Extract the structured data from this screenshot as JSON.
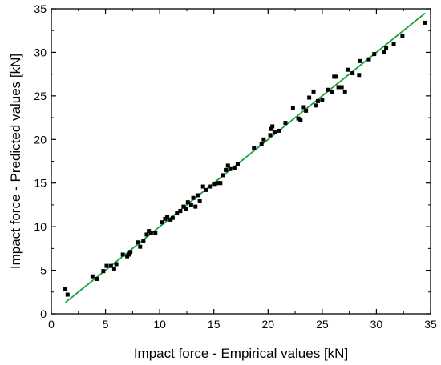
{
  "chart_data": {
    "type": "scatter",
    "xlabel": "Impact force - Empirical values [kN]",
    "ylabel": "Impact force - Predicted values [kN]",
    "xlim": [
      0,
      35
    ],
    "ylim": [
      0,
      35
    ],
    "xticks": [
      0,
      5,
      10,
      15,
      20,
      25,
      30,
      35
    ],
    "yticks": [
      0,
      5,
      10,
      15,
      20,
      25,
      30,
      35
    ],
    "minor_tick_step": 2.5,
    "grid": false,
    "series": [
      {
        "marker": "square",
        "color": "#000000",
        "points": [
          [
            1.3,
            2.8
          ],
          [
            1.5,
            2.2
          ],
          [
            3.8,
            4.3
          ],
          [
            4.2,
            4.0
          ],
          [
            4.8,
            4.9
          ],
          [
            5.1,
            5.5
          ],
          [
            5.5,
            5.5
          ],
          [
            5.8,
            5.2
          ],
          [
            6.0,
            5.7
          ],
          [
            6.6,
            6.8
          ],
          [
            7.0,
            6.6
          ],
          [
            7.2,
            6.8
          ],
          [
            7.3,
            7.1
          ],
          [
            8.0,
            8.2
          ],
          [
            8.2,
            7.7
          ],
          [
            8.5,
            8.4
          ],
          [
            8.8,
            9.1
          ],
          [
            9.0,
            9.5
          ],
          [
            9.2,
            9.3
          ],
          [
            9.6,
            9.3
          ],
          [
            10.2,
            10.5
          ],
          [
            10.5,
            10.9
          ],
          [
            10.7,
            11.1
          ],
          [
            11.0,
            10.8
          ],
          [
            11.2,
            11.0
          ],
          [
            11.6,
            11.6
          ],
          [
            11.9,
            11.8
          ],
          [
            12.2,
            12.3
          ],
          [
            12.4,
            12.0
          ],
          [
            12.6,
            12.8
          ],
          [
            12.9,
            12.5
          ],
          [
            13.1,
            13.3
          ],
          [
            13.3,
            12.3
          ],
          [
            13.5,
            13.6
          ],
          [
            13.7,
            13.0
          ],
          [
            14.0,
            14.6
          ],
          [
            14.3,
            14.2
          ],
          [
            14.7,
            14.6
          ],
          [
            15.1,
            14.9
          ],
          [
            15.4,
            15.0
          ],
          [
            15.6,
            15.0
          ],
          [
            15.8,
            15.9
          ],
          [
            16.1,
            16.5
          ],
          [
            16.3,
            17.0
          ],
          [
            16.5,
            16.6
          ],
          [
            16.9,
            16.7
          ],
          [
            17.2,
            17.2
          ],
          [
            18.7,
            19.0
          ],
          [
            19.4,
            19.5
          ],
          [
            19.6,
            20.0
          ],
          [
            20.2,
            20.5
          ],
          [
            20.3,
            21.2
          ],
          [
            20.4,
            21.5
          ],
          [
            20.6,
            20.8
          ],
          [
            21.0,
            21.0
          ],
          [
            21.6,
            21.9
          ],
          [
            22.3,
            23.6
          ],
          [
            22.8,
            22.4
          ],
          [
            23.0,
            22.2
          ],
          [
            23.3,
            23.7
          ],
          [
            23.5,
            23.3
          ],
          [
            23.8,
            24.8
          ],
          [
            24.2,
            25.5
          ],
          [
            24.4,
            23.9
          ],
          [
            24.6,
            24.4
          ],
          [
            25.0,
            24.5
          ],
          [
            25.5,
            25.7
          ],
          [
            25.9,
            25.4
          ],
          [
            26.1,
            27.2
          ],
          [
            26.3,
            27.2
          ],
          [
            26.5,
            26.0
          ],
          [
            26.8,
            26.0
          ],
          [
            27.1,
            25.5
          ],
          [
            27.4,
            28.0
          ],
          [
            27.8,
            27.6
          ],
          [
            28.4,
            27.4
          ],
          [
            28.5,
            29.0
          ],
          [
            29.3,
            29.2
          ],
          [
            29.8,
            29.8
          ],
          [
            30.7,
            30.0
          ],
          [
            30.9,
            30.5
          ],
          [
            31.6,
            31.0
          ],
          [
            32.4,
            31.9
          ],
          [
            34.5,
            33.4
          ]
        ]
      }
    ],
    "fit_line": {
      "color": "#1aa33a",
      "x": [
        1.3,
        34.5
      ],
      "y": [
        1.3,
        34.5
      ]
    }
  }
}
